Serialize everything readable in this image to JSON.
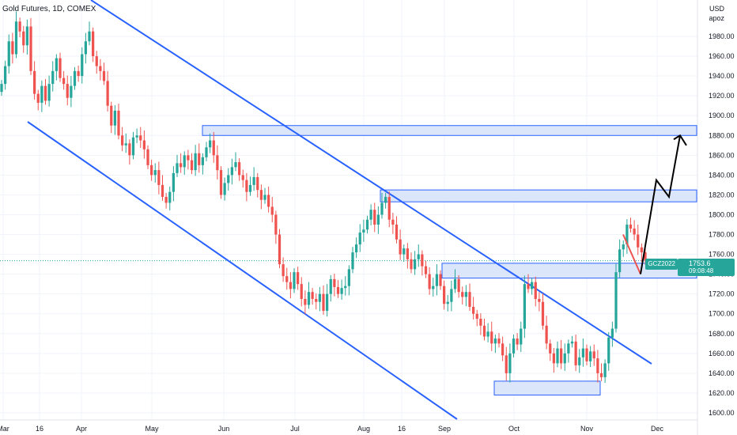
{
  "header": {
    "title": "Gold Futures, 1D, COMEX"
  },
  "axis_unit": {
    "line1": "USD",
    "line2": "apoz"
  },
  "last_price": {
    "symbol": "GCZ2022",
    "price": "1753.6",
    "countdown": "09:08:48"
  },
  "colors": {
    "up": "#26a69a",
    "down": "#ef5350",
    "channel": "#2962ff",
    "zone_fill": "#dbe6fb",
    "zone_stroke": "#2962ff",
    "projection": "#000000"
  },
  "chart_data": {
    "type": "candlestick",
    "title": "Gold Futures, 1D, COMEX",
    "ylim": [
      1595,
      2005
    ],
    "y_ticks": [
      1600,
      1620,
      1640,
      1660,
      1680,
      1700,
      1720,
      1740,
      1760,
      1780,
      1800,
      1820,
      1840,
      1860,
      1880,
      1900,
      1920,
      1940,
      1960,
      1980
    ],
    "x_ticks": [
      "Mar",
      "16",
      "Apr",
      "May",
      "Jun",
      "Jul",
      "Aug",
      "16",
      "Sep",
      "Oct",
      "Nov",
      "Dec"
    ],
    "last_value": 1753.6,
    "closes": [
      1932,
      1950,
      1975,
      1962,
      1995,
      1985,
      1971,
      1990,
      1945,
      1922,
      1913,
      1930,
      1915,
      1932,
      1945,
      1958,
      1938,
      1932,
      1918,
      1930,
      1945,
      1940,
      1962,
      1975,
      1985,
      1960,
      1950,
      1945,
      1935,
      1910,
      1890,
      1905,
      1880,
      1870,
      1872,
      1860,
      1878,
      1880,
      1875,
      1866,
      1850,
      1840,
      1845,
      1830,
      1818,
      1812,
      1823,
      1842,
      1852,
      1848,
      1860,
      1855,
      1845,
      1862,
      1850,
      1858,
      1868,
      1875,
      1860,
      1845,
      1820,
      1832,
      1840,
      1848,
      1853,
      1840,
      1835,
      1823,
      1830,
      1838,
      1825,
      1815,
      1820,
      1808,
      1800,
      1780,
      1750,
      1738,
      1732,
      1725,
      1742,
      1730,
      1715,
      1709,
      1722,
      1715,
      1712,
      1720,
      1703,
      1720,
      1735,
      1727,
      1720,
      1726,
      1728,
      1745,
      1762,
      1770,
      1782,
      1785,
      1795,
      1805,
      1790,
      1800,
      1812,
      1818,
      1795,
      1790,
      1775,
      1760,
      1766,
      1755,
      1745,
      1755,
      1760,
      1748,
      1740,
      1725,
      1728,
      1740,
      1728,
      1710,
      1712,
      1725,
      1735,
      1722,
      1717,
      1722,
      1707,
      1700,
      1695,
      1688,
      1677,
      1682,
      1670,
      1675,
      1670,
      1658,
      1640,
      1660,
      1675,
      1669,
      1685,
      1730,
      1725,
      1732,
      1715,
      1712,
      1688,
      1670,
      1660,
      1650,
      1665,
      1650,
      1660,
      1670,
      1672,
      1648,
      1656,
      1665,
      1652,
      1662,
      1655,
      1640,
      1636,
      1650,
      1676,
      1685,
      1742,
      1765,
      1770,
      1790,
      1786,
      1780,
      1767,
      1762,
      1753.6
    ]
  },
  "projection_path": [
    1740,
    1835,
    1818,
    1880,
    1870
  ]
}
